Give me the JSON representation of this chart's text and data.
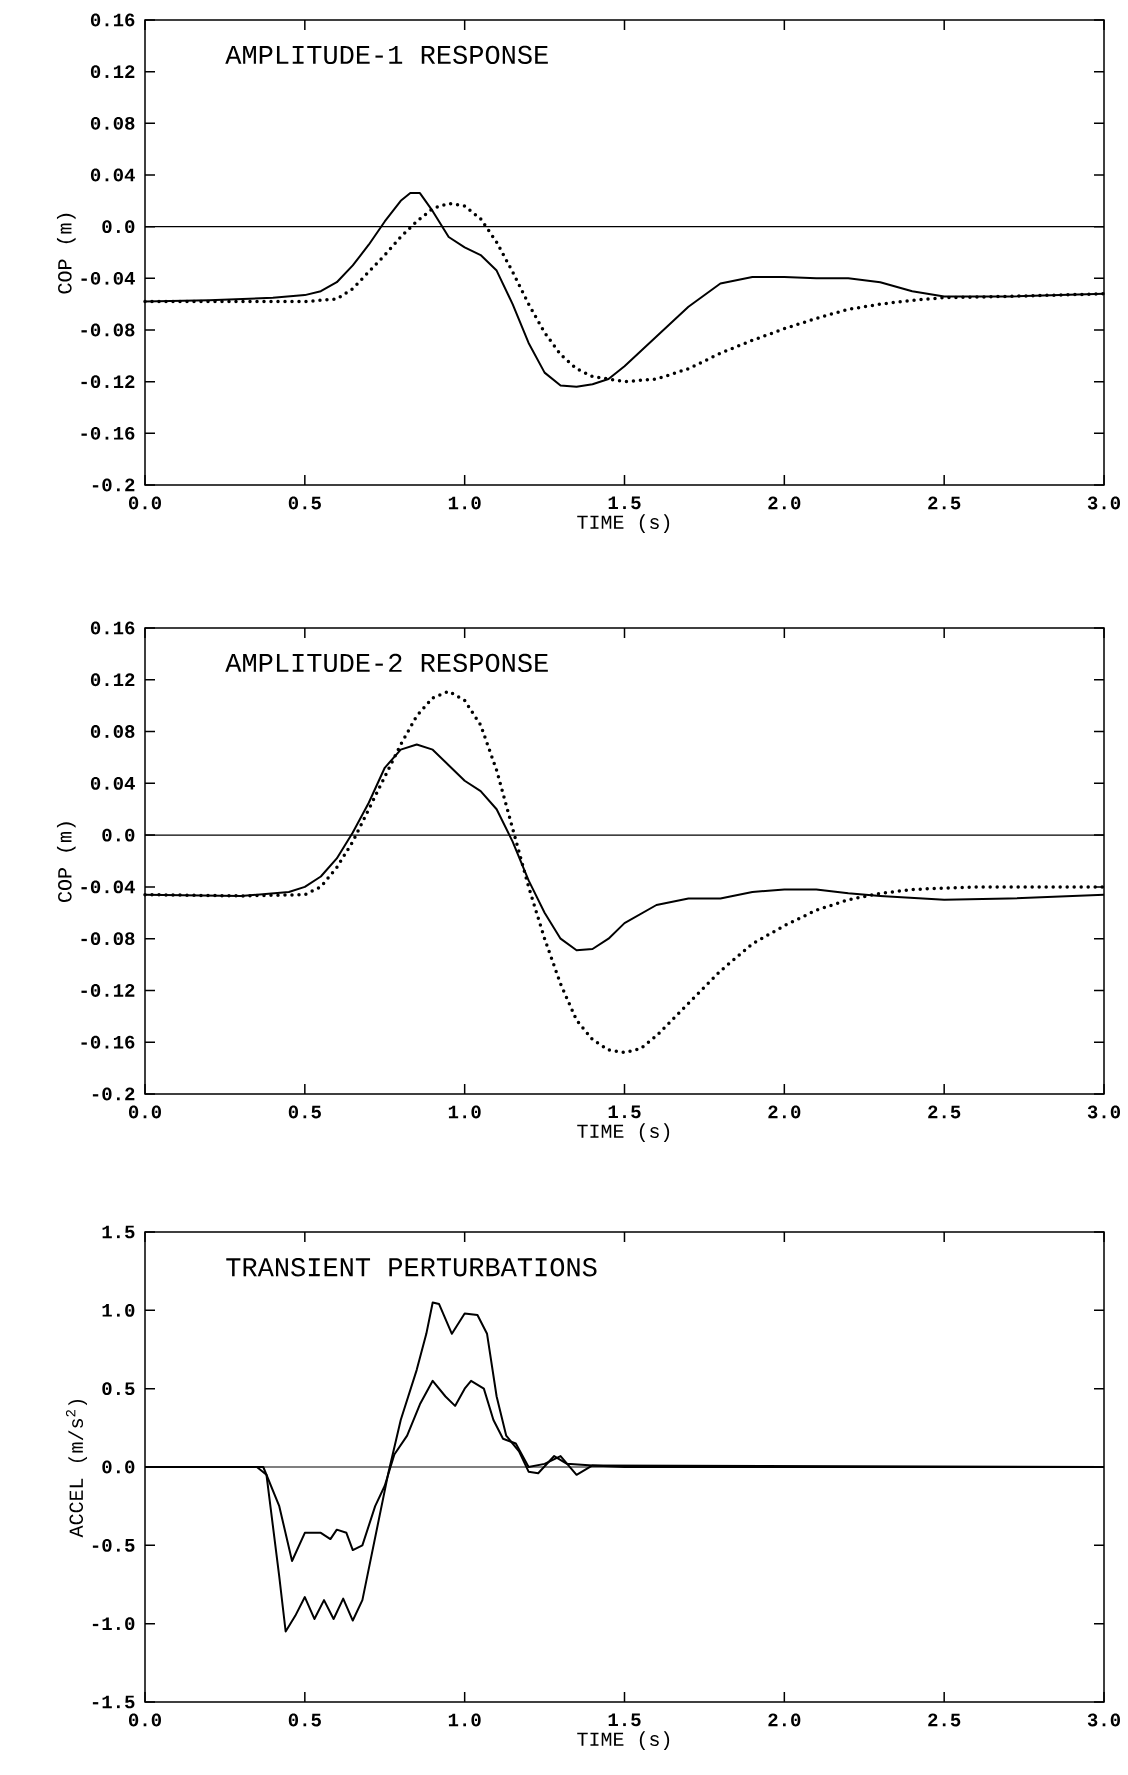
{
  "chart_data": [
    {
      "type": "line",
      "title": "AMPLITUDE-1 RESPONSE",
      "xlabel": "TIME (s)",
      "ylabel": "COP (m)",
      "xlim": [
        0,
        3
      ],
      "ylim": [
        -0.2,
        0.16
      ],
      "xticks": [
        {
          "value": 0,
          "label": "0.0"
        },
        {
          "value": 0.5,
          "label": "0.5"
        },
        {
          "value": 1,
          "label": "1.0"
        },
        {
          "value": 1.5,
          "label": "1.5"
        },
        {
          "value": 2,
          "label": "2.0"
        },
        {
          "value": 2.5,
          "label": "2.5"
        },
        {
          "value": 3,
          "label": "3.0"
        }
      ],
      "yticks": [
        {
          "value": -0.2,
          "label": "-0.2"
        },
        {
          "value": -0.16,
          "label": "-0.16"
        },
        {
          "value": -0.12,
          "label": "-0.12"
        },
        {
          "value": -0.08,
          "label": "-0.08"
        },
        {
          "value": -0.04,
          "label": "-0.04"
        },
        {
          "value": 0,
          "label": "0.0"
        },
        {
          "value": 0.04,
          "label": "0.04"
        },
        {
          "value": 0.08,
          "label": "0.08"
        },
        {
          "value": 0.12,
          "label": "0.12"
        },
        {
          "value": 0.16,
          "label": "0.16"
        }
      ],
      "ref_lines": [
        {
          "axis": "y",
          "value": 0,
          "color": "#000000"
        }
      ],
      "series": [
        {
          "color": "#000000",
          "line_style": "solid",
          "x": [
            0,
            0.2,
            0.4,
            0.5,
            0.55,
            0.6,
            0.65,
            0.7,
            0.75,
            0.8,
            0.83,
            0.86,
            0.9,
            0.95,
            1.0,
            1.05,
            1.1,
            1.15,
            1.2,
            1.25,
            1.3,
            1.35,
            1.4,
            1.45,
            1.5,
            1.6,
            1.7,
            1.8,
            1.9,
            2.0,
            2.1,
            2.2,
            2.3,
            2.4,
            2.5,
            2.7,
            3.0
          ],
          "values": [
            -0.058,
            -0.057,
            -0.055,
            -0.053,
            -0.05,
            -0.043,
            -0.03,
            -0.014,
            0.004,
            0.02,
            0.026,
            0.026,
            0.012,
            -0.008,
            -0.016,
            -0.022,
            -0.034,
            -0.06,
            -0.09,
            -0.113,
            -0.123,
            -0.124,
            -0.122,
            -0.118,
            -0.108,
            -0.085,
            -0.062,
            -0.044,
            -0.039,
            -0.039,
            -0.04,
            -0.04,
            -0.043,
            -0.05,
            -0.054,
            -0.054,
            -0.052
          ]
        },
        {
          "color": "#000000",
          "line_style": "dotted",
          "x": [
            0,
            0.3,
            0.5,
            0.6,
            0.65,
            0.7,
            0.75,
            0.8,
            0.85,
            0.9,
            0.95,
            1.0,
            1.05,
            1.1,
            1.15,
            1.2,
            1.25,
            1.3,
            1.35,
            1.4,
            1.5,
            1.6,
            1.7,
            1.8,
            1.9,
            2.0,
            2.1,
            2.2,
            2.3,
            2.4,
            2.5,
            2.7,
            3.0
          ],
          "values": [
            -0.058,
            -0.058,
            -0.058,
            -0.056,
            -0.048,
            -0.035,
            -0.022,
            -0.008,
            0.004,
            0.014,
            0.018,
            0.016,
            0.006,
            -0.012,
            -0.035,
            -0.06,
            -0.082,
            -0.099,
            -0.11,
            -0.116,
            -0.12,
            -0.118,
            -0.11,
            -0.098,
            -0.088,
            -0.079,
            -0.071,
            -0.064,
            -0.06,
            -0.057,
            -0.055,
            -0.054,
            -0.052
          ]
        }
      ]
    },
    {
      "type": "line",
      "title": "AMPLITUDE-2 RESPONSE",
      "xlabel": "TIME (s)",
      "ylabel": "COP (m)",
      "xlim": [
        0,
        3
      ],
      "ylim": [
        -0.2,
        0.16
      ],
      "xticks": [
        {
          "value": 0,
          "label": "0.0"
        },
        {
          "value": 0.5,
          "label": "0.5"
        },
        {
          "value": 1,
          "label": "1.0"
        },
        {
          "value": 1.5,
          "label": "1.5"
        },
        {
          "value": 2,
          "label": "2.0"
        },
        {
          "value": 2.5,
          "label": "2.5"
        },
        {
          "value": 3,
          "label": "3.0"
        }
      ],
      "yticks": [
        {
          "value": -0.2,
          "label": "-0.2"
        },
        {
          "value": -0.16,
          "label": "-0.16"
        },
        {
          "value": -0.12,
          "label": "-0.12"
        },
        {
          "value": -0.08,
          "label": "-0.08"
        },
        {
          "value": -0.04,
          "label": "-0.04"
        },
        {
          "value": 0,
          "label": "0.0"
        },
        {
          "value": 0.04,
          "label": "0.04"
        },
        {
          "value": 0.08,
          "label": "0.08"
        },
        {
          "value": 0.12,
          "label": "0.12"
        },
        {
          "value": 0.16,
          "label": "0.16"
        }
      ],
      "ref_lines": [
        {
          "axis": "y",
          "value": 0,
          "color": "#000000"
        }
      ],
      "series": [
        {
          "color": "#000000",
          "line_style": "solid",
          "x": [
            0,
            0.3,
            0.45,
            0.5,
            0.55,
            0.6,
            0.65,
            0.7,
            0.75,
            0.8,
            0.85,
            0.9,
            0.95,
            1.0,
            1.05,
            1.1,
            1.15,
            1.2,
            1.25,
            1.3,
            1.35,
            1.4,
            1.45,
            1.5,
            1.6,
            1.7,
            1.8,
            1.9,
            2.0,
            2.1,
            2.2,
            2.3,
            2.5,
            2.7,
            3.0
          ],
          "values": [
            -0.046,
            -0.047,
            -0.044,
            -0.04,
            -0.032,
            -0.018,
            0.002,
            0.025,
            0.052,
            0.066,
            0.07,
            0.066,
            0.054,
            0.042,
            0.034,
            0.02,
            -0.005,
            -0.035,
            -0.06,
            -0.08,
            -0.089,
            -0.088,
            -0.08,
            -0.068,
            -0.054,
            -0.049,
            -0.049,
            -0.044,
            -0.042,
            -0.042,
            -0.045,
            -0.047,
            -0.05,
            -0.049,
            -0.046
          ]
        },
        {
          "color": "#000000",
          "line_style": "dotted",
          "x": [
            0,
            0.3,
            0.5,
            0.55,
            0.6,
            0.65,
            0.7,
            0.75,
            0.8,
            0.85,
            0.9,
            0.95,
            1.0,
            1.05,
            1.1,
            1.15,
            1.2,
            1.25,
            1.3,
            1.35,
            1.4,
            1.45,
            1.5,
            1.55,
            1.6,
            1.7,
            1.8,
            1.9,
            2.0,
            2.1,
            2.2,
            2.3,
            2.4,
            2.6,
            3.0
          ],
          "values": [
            -0.046,
            -0.047,
            -0.046,
            -0.04,
            -0.025,
            -0.005,
            0.02,
            0.045,
            0.07,
            0.092,
            0.106,
            0.111,
            0.104,
            0.085,
            0.05,
            0.005,
            -0.04,
            -0.08,
            -0.115,
            -0.143,
            -0.158,
            -0.166,
            -0.168,
            -0.165,
            -0.155,
            -0.13,
            -0.105,
            -0.084,
            -0.07,
            -0.058,
            -0.05,
            -0.045,
            -0.042,
            -0.04,
            -0.04
          ]
        }
      ]
    },
    {
      "type": "line",
      "title": "TRANSIENT PERTURBATIONS",
      "xlabel": "TIME (s)",
      "ylabel": "ACCEL (m/s$^{2}$)",
      "xlim": [
        0,
        3
      ],
      "ylim": [
        -1.5,
        1.5
      ],
      "xticks": [
        {
          "value": 0,
          "label": "0.0"
        },
        {
          "value": 0.5,
          "label": "0.5"
        },
        {
          "value": 1,
          "label": "1.0"
        },
        {
          "value": 1.5,
          "label": "1.5"
        },
        {
          "value": 2,
          "label": "2.0"
        },
        {
          "value": 2.5,
          "label": "2.5"
        },
        {
          "value": 3,
          "label": "3.0"
        }
      ],
      "yticks": [
        {
          "value": -1.5,
          "label": "-1.5"
        },
        {
          "value": -1,
          "label": "-1.0"
        },
        {
          "value": -0.5,
          "label": "-0.5"
        },
        {
          "value": 0,
          "label": "0.0"
        },
        {
          "value": 0.5,
          "label": "0.5"
        },
        {
          "value": 1,
          "label": "1.0"
        },
        {
          "value": 1.5,
          "label": "1.5"
        }
      ],
      "ref_lines": [
        {
          "axis": "y",
          "value": 0,
          "color": "#000000"
        }
      ],
      "series": [
        {
          "color": "#000000",
          "line_style": "solid",
          "x": [
            0,
            0.35,
            0.38,
            0.42,
            0.44,
            0.47,
            0.5,
            0.53,
            0.56,
            0.59,
            0.62,
            0.65,
            0.68,
            0.72,
            0.76,
            0.8,
            0.85,
            0.88,
            0.9,
            0.92,
            0.96,
            1.0,
            1.04,
            1.07,
            1.1,
            1.13,
            1.17,
            1.2,
            1.23,
            1.28,
            1.32,
            1.4,
            1.5,
            3.0
          ],
          "values": [
            0,
            0,
            -0.05,
            -0.7,
            -1.05,
            -0.95,
            -0.83,
            -0.97,
            -0.85,
            -0.97,
            -0.84,
            -0.98,
            -0.85,
            -0.45,
            -0.05,
            0.3,
            0.62,
            0.85,
            1.05,
            1.04,
            0.85,
            0.98,
            0.97,
            0.85,
            0.45,
            0.2,
            0.1,
            -0.03,
            -0.04,
            0.07,
            0.02,
            0.01,
            0,
            0
          ]
        },
        {
          "color": "#000000",
          "line_style": "solid",
          "x": [
            0,
            0.37,
            0.42,
            0.46,
            0.5,
            0.55,
            0.58,
            0.6,
            0.63,
            0.65,
            0.68,
            0.72,
            0.75,
            0.78,
            0.82,
            0.86,
            0.9,
            0.94,
            0.97,
            1.0,
            1.02,
            1.06,
            1.09,
            1.12,
            1.16,
            1.2,
            1.25,
            1.3,
            1.35,
            1.4,
            3.0
          ],
          "values": [
            0,
            0,
            -0.25,
            -0.6,
            -0.42,
            -0.42,
            -0.46,
            -0.4,
            -0.42,
            -0.53,
            -0.5,
            -0.25,
            -0.12,
            0.08,
            0.2,
            0.4,
            0.55,
            0.45,
            0.39,
            0.5,
            0.55,
            0.5,
            0.3,
            0.18,
            0.15,
            0,
            0.02,
            0.07,
            -0.05,
            0.01,
            0
          ]
        }
      ]
    }
  ]
}
